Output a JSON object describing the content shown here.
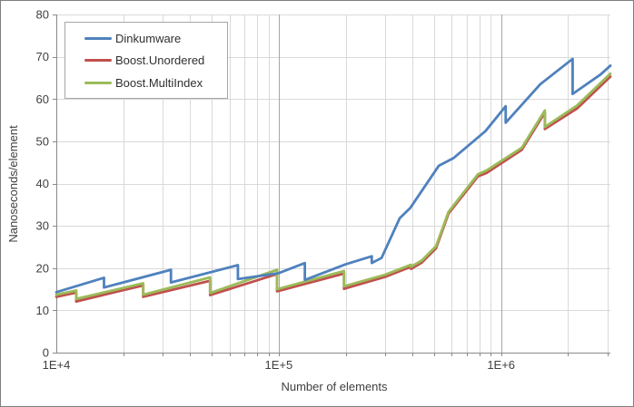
{
  "window": {
    "border_color": "#7f7f7f",
    "background": "#ffffff"
  },
  "chart_data": {
    "type": "line",
    "title": "",
    "xlabel": "Number of elements",
    "ylabel": "Nanoseconds/element",
    "x_scale": "log",
    "xlim": [
      10000,
      3100000
    ],
    "ylim": [
      0,
      80
    ],
    "x_ticks": [
      {
        "value": 10000,
        "label": "1E+4"
      },
      {
        "value": 100000,
        "label": "1E+5"
      },
      {
        "value": 1000000,
        "label": "1E+6"
      }
    ],
    "y_ticks": [
      0,
      10,
      20,
      30,
      40,
      50,
      60,
      70,
      80
    ],
    "grid": {
      "minor_color": "#d9d9d9",
      "major_color": "#a6a6a6",
      "axis_color": "#898989",
      "text_color": "#3f3f3f",
      "legend_position": "top-left"
    },
    "series": [
      {
        "name": "Boost.Unordered",
        "color": "#C0504D",
        "points": [
          [
            10000,
            13.2
          ],
          [
            12289,
            14.2
          ],
          [
            12289,
            12.1
          ],
          [
            24593,
            15.9
          ],
          [
            24593,
            13.2
          ],
          [
            49157,
            17.0
          ],
          [
            49157,
            13.6
          ],
          [
            98317,
            18.6
          ],
          [
            98317,
            14.5
          ],
          [
            196613,
            18.7
          ],
          [
            196613,
            15.1
          ],
          [
            300000,
            17.9
          ],
          [
            393241,
            20.3
          ],
          [
            393241,
            19.8
          ],
          [
            440000,
            21.3
          ],
          [
            510000,
            24.7
          ],
          [
            580000,
            32.9
          ],
          [
            786433,
            41.7
          ],
          [
            860000,
            42.5
          ],
          [
            1240000,
            48.0
          ],
          [
            1572869,
            56.8
          ],
          [
            1572869,
            52.9
          ],
          [
            2200000,
            57.8
          ],
          [
            3100000,
            65.3
          ]
        ]
      },
      {
        "name": "Boost.MultiIndex",
        "color": "#9BBB59",
        "points": [
          [
            10000,
            13.7
          ],
          [
            12289,
            14.7
          ],
          [
            12289,
            12.7
          ],
          [
            24593,
            16.4
          ],
          [
            24593,
            13.7
          ],
          [
            49157,
            17.8
          ],
          [
            49157,
            14.1
          ],
          [
            98317,
            19.6
          ],
          [
            98317,
            15.0
          ],
          [
            196613,
            19.3
          ],
          [
            196613,
            15.7
          ],
          [
            300000,
            18.4
          ],
          [
            393241,
            20.8
          ],
          [
            393241,
            20.3
          ],
          [
            440000,
            21.8
          ],
          [
            510000,
            25.2
          ],
          [
            580000,
            33.3
          ],
          [
            786433,
            42.2
          ],
          [
            860000,
            43.1
          ],
          [
            1240000,
            48.5
          ],
          [
            1572869,
            57.3
          ],
          [
            1572869,
            53.4
          ],
          [
            2200000,
            58.5
          ],
          [
            3100000,
            66.0
          ]
        ]
      },
      {
        "name": "Dinkumware",
        "color": "#4F81BD",
        "points": [
          [
            10000,
            14.3
          ],
          [
            16384,
            17.7
          ],
          [
            16384,
            15.4
          ],
          [
            32768,
            19.6
          ],
          [
            32768,
            16.6
          ],
          [
            65536,
            20.7
          ],
          [
            65536,
            17.4
          ],
          [
            100000,
            18.8
          ],
          [
            131072,
            21.2
          ],
          [
            131072,
            17.2
          ],
          [
            200000,
            20.9
          ],
          [
            262144,
            22.8
          ],
          [
            262144,
            21.2
          ],
          [
            290000,
            22.4
          ],
          [
            350000,
            31.8
          ],
          [
            390000,
            34.2
          ],
          [
            524288,
            44.2
          ],
          [
            610000,
            46.0
          ],
          [
            850000,
            52.4
          ],
          [
            1048576,
            58.3
          ],
          [
            1048576,
            54.4
          ],
          [
            1500000,
            63.5
          ],
          [
            2097152,
            69.5
          ],
          [
            2097152,
            61.2
          ],
          [
            2800000,
            65.8
          ],
          [
            3100000,
            67.9
          ]
        ]
      }
    ],
    "legend_order": [
      "Dinkumware",
      "Boost.Unordered",
      "Boost.MultiIndex"
    ]
  }
}
